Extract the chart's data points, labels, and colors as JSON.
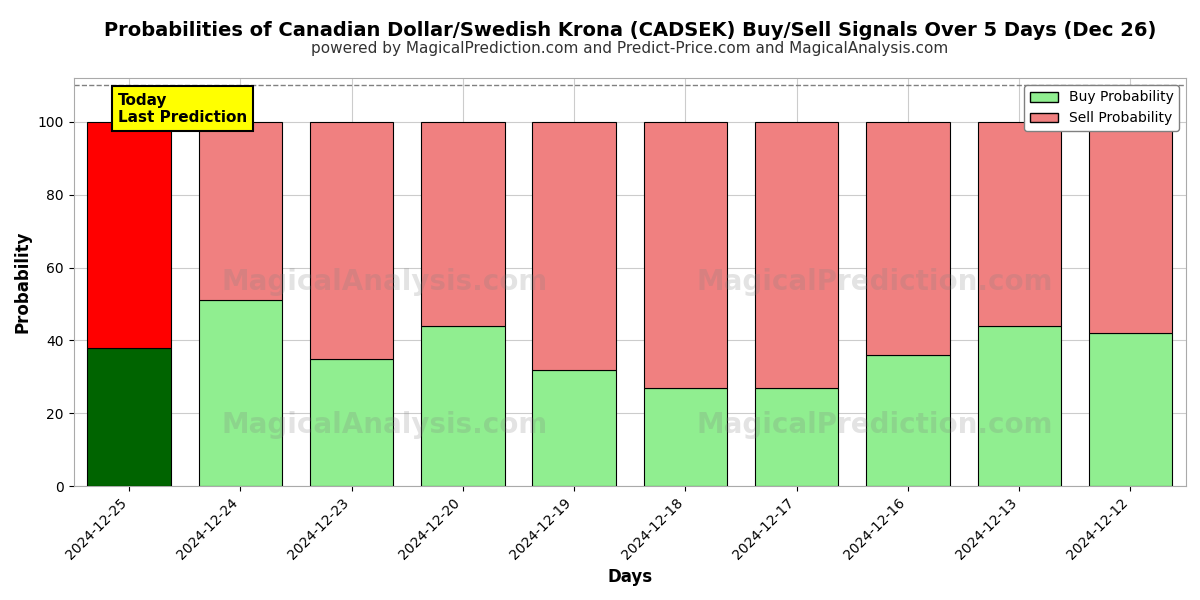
{
  "title": "Probabilities of Canadian Dollar/Swedish Krona (CADSEK) Buy/Sell Signals Over 5 Days (Dec 26)",
  "subtitle": "powered by MagicalPrediction.com and Predict-Price.com and MagicalAnalysis.com",
  "xlabel": "Days",
  "ylabel": "Probability",
  "categories": [
    "2024-12-25",
    "2024-12-24",
    "2024-12-23",
    "2024-12-20",
    "2024-12-19",
    "2024-12-18",
    "2024-12-17",
    "2024-12-16",
    "2024-12-13",
    "2024-12-12"
  ],
  "buy_values": [
    38,
    51,
    35,
    44,
    32,
    27,
    27,
    36,
    44,
    42
  ],
  "sell_values": [
    62,
    49,
    65,
    56,
    68,
    73,
    73,
    64,
    56,
    58
  ],
  "today_buy_color": "#006400",
  "today_sell_color": "#ff0000",
  "buy_color": "#90ee90",
  "sell_color": "#f08080",
  "bar_edge_color": "#000000",
  "ylim": [
    0,
    112
  ],
  "yticks": [
    0,
    20,
    40,
    60,
    80,
    100
  ],
  "dashed_line_y": 110,
  "legend_buy": "Buy Probability",
  "legend_sell": "Sell Probability",
  "today_label": "Today\nLast Prediction",
  "background_color": "#ffffff",
  "grid_color": "#cccccc",
  "title_fontsize": 14,
  "subtitle_fontsize": 11,
  "label_fontsize": 12
}
